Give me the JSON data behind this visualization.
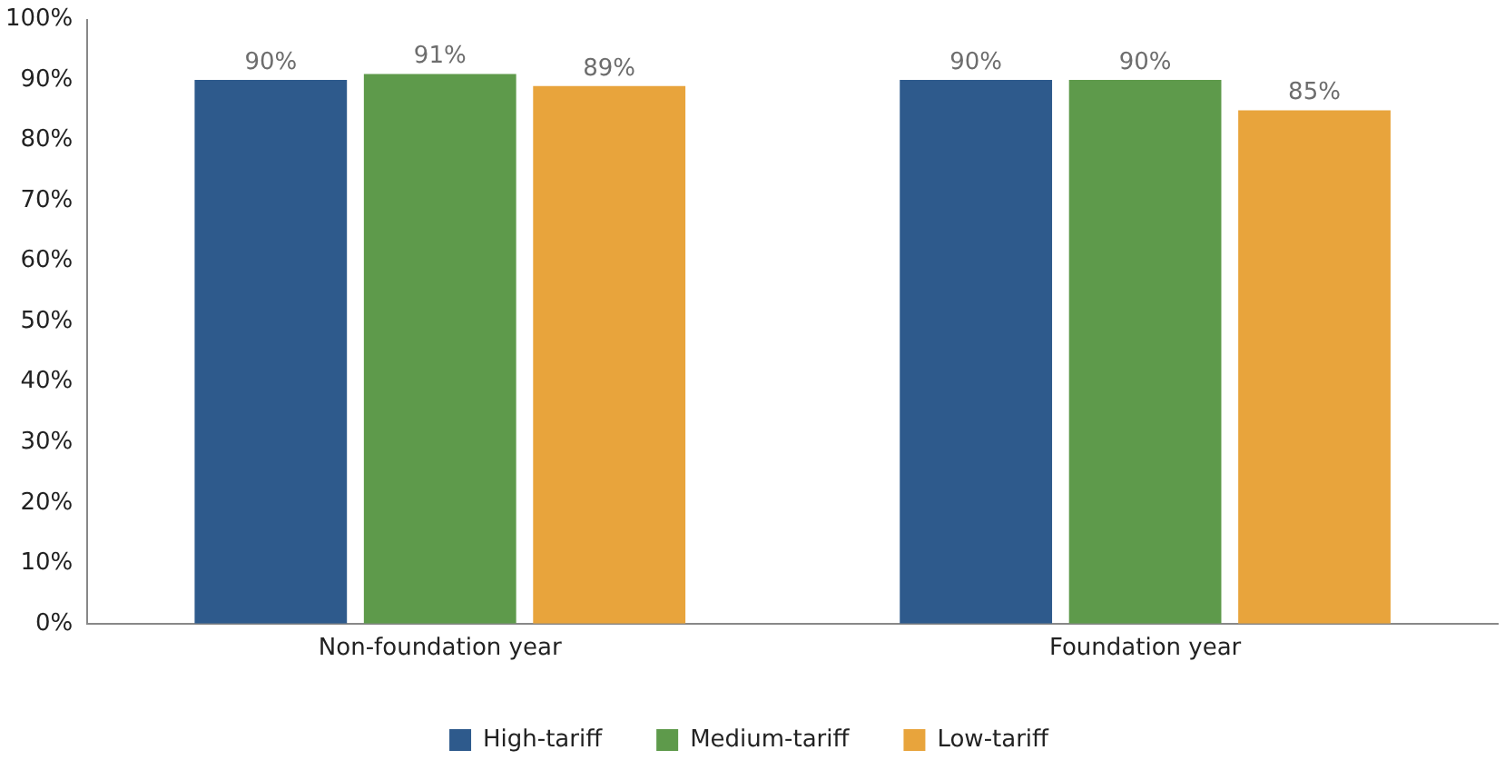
{
  "chart_data": {
    "type": "bar",
    "categories": [
      "Non-foundation year",
      "Foundation year"
    ],
    "series": [
      {
        "name": "High-tariff",
        "color": "#2e5a8c",
        "values": [
          90,
          90
        ],
        "value_labels": [
          "90%",
          "90%"
        ]
      },
      {
        "name": "Medium-tariff",
        "color": "#5e9a4b",
        "values": [
          91,
          90
        ],
        "value_labels": [
          "91%",
          "90%"
        ]
      },
      {
        "name": "Low-tariff",
        "color": "#e8a43c",
        "values": [
          89,
          85
        ],
        "value_labels": [
          "89%",
          "85%"
        ]
      }
    ],
    "ylim": [
      0,
      100
    ],
    "yticks": [
      {
        "value": 0,
        "label": "0%"
      },
      {
        "value": 10,
        "label": "10%"
      },
      {
        "value": 20,
        "label": "20%"
      },
      {
        "value": 30,
        "label": "30%"
      },
      {
        "value": 40,
        "label": "40%"
      },
      {
        "value": 50,
        "label": "50%"
      },
      {
        "value": 60,
        "label": "60%"
      },
      {
        "value": 70,
        "label": "70%"
      },
      {
        "value": 80,
        "label": "80%"
      },
      {
        "value": 90,
        "label": "90%"
      },
      {
        "value": 100,
        "label": "100%"
      }
    ],
    "grid": false,
    "legend": "bottom"
  }
}
